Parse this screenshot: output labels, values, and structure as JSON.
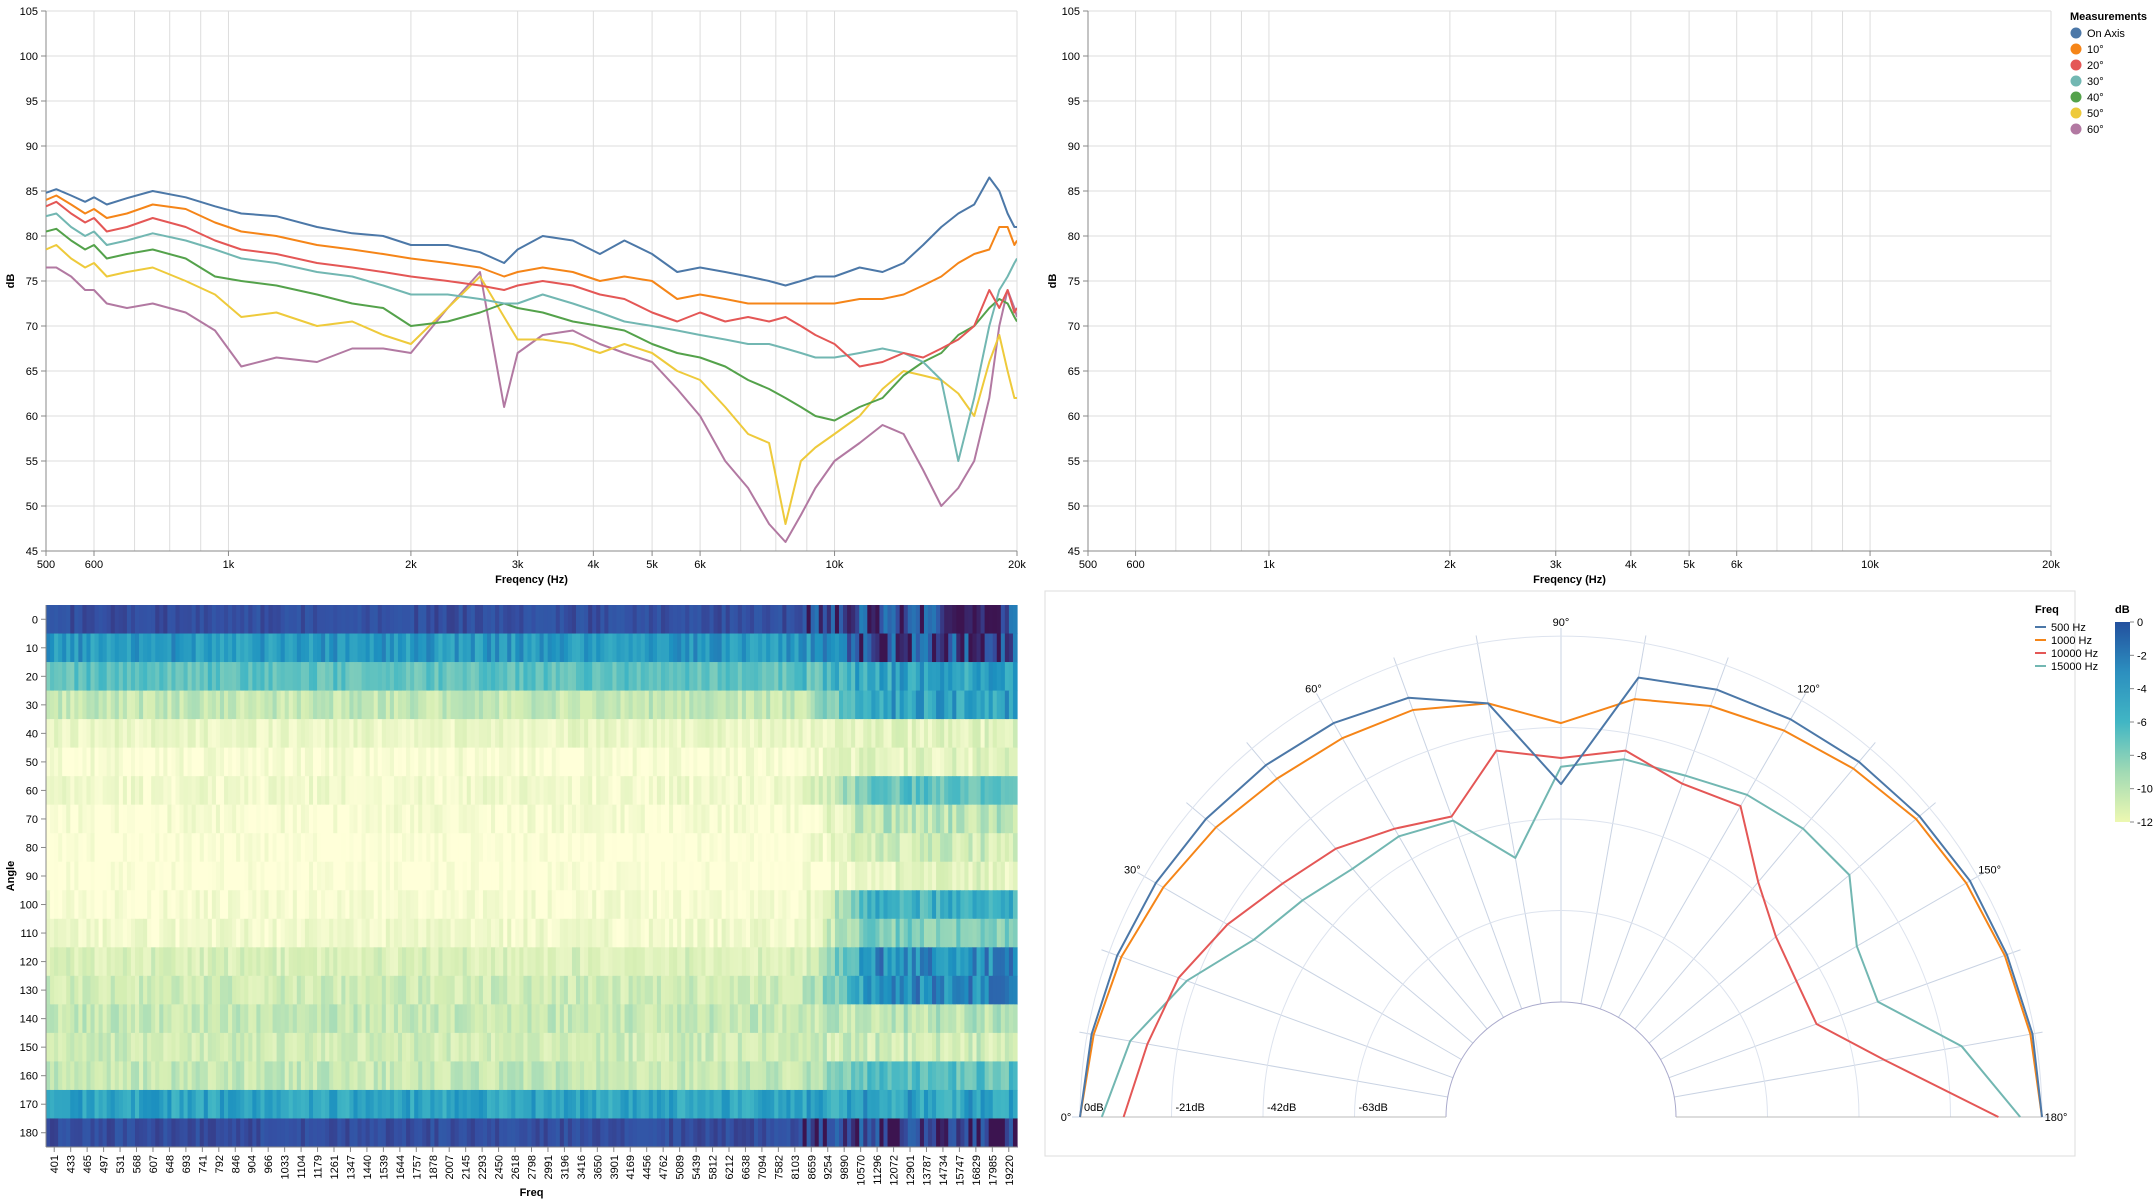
{
  "colors": {
    "On Axis": "#4c78a8",
    "10°": "#f58518",
    "20°": "#e45756",
    "30°": "#72b7b2",
    "40°": "#54a24b",
    "50°": "#eeca3b",
    "60°": "#b279a2"
  },
  "legend": {
    "title": "Measurements",
    "entries": [
      "On Axis",
      "10°",
      "20°",
      "30°",
      "40°",
      "50°",
      "60°"
    ]
  },
  "chart_data": [
    {
      "type": "line",
      "xlabel": "Freqency (Hz)",
      "ylabel": "dB",
      "xscale": "log",
      "xlim": [
        500,
        20000
      ],
      "ylim": [
        45,
        105
      ],
      "xticks": [
        500,
        600,
        1000,
        2000,
        3000,
        4000,
        5000,
        6000,
        10000,
        20000
      ],
      "xticklabels": [
        "500",
        "600",
        "1k",
        "2k",
        "3k",
        "4k",
        "5k",
        "6k",
        "10k",
        "20k"
      ],
      "yticks": [
        45,
        50,
        55,
        60,
        65,
        70,
        75,
        80,
        85,
        90,
        95,
        100,
        105
      ],
      "grid": true,
      "x": [
        500,
        520,
        550,
        580,
        600,
        630,
        680,
        750,
        850,
        950,
        1050,
        1200,
        1400,
        1600,
        1800,
        2000,
        2300,
        2600,
        2850,
        3000,
        3300,
        3700,
        4100,
        4500,
        5000,
        5500,
        6000,
        6600,
        7200,
        7800,
        8300,
        8800,
        9300,
        10000,
        11000,
        12000,
        13000,
        14000,
        15000,
        16000,
        17000,
        18000,
        18700,
        19300,
        19800,
        20000
      ],
      "series": [
        {
          "name": "On Axis",
          "values": [
            84.8,
            85.2,
            84.5,
            83.8,
            84.3,
            83.5,
            84.2,
            85.0,
            84.3,
            83.3,
            82.5,
            82.2,
            81.0,
            80.3,
            80.0,
            79.0,
            79.0,
            78.2,
            77.0,
            78.5,
            80.0,
            79.5,
            78.0,
            79.5,
            78.0,
            76.0,
            76.5,
            76.0,
            75.5,
            75.0,
            74.5,
            75.0,
            75.5,
            75.5,
            76.5,
            76.0,
            77.0,
            79.0,
            81.0,
            82.5,
            83.5,
            86.5,
            85.0,
            82.5,
            81.0,
            81.0
          ]
        },
        {
          "name": "10°",
          "values": [
            84.0,
            84.5,
            83.5,
            82.5,
            83.0,
            82.0,
            82.5,
            83.5,
            83.0,
            81.5,
            80.5,
            80.0,
            79.0,
            78.5,
            78.0,
            77.5,
            77.0,
            76.5,
            75.5,
            76.0,
            76.5,
            76.0,
            75.0,
            75.5,
            75.0,
            73.0,
            73.5,
            73.0,
            72.5,
            72.5,
            72.5,
            72.5,
            72.5,
            72.5,
            73.0,
            73.0,
            73.5,
            74.5,
            75.5,
            77.0,
            78.0,
            78.5,
            81.0,
            81.0,
            79.0,
            79.5
          ]
        },
        {
          "name": "20°",
          "values": [
            83.3,
            83.8,
            82.5,
            81.5,
            82.0,
            80.5,
            81.0,
            82.0,
            81.0,
            79.5,
            78.5,
            78.0,
            77.0,
            76.5,
            76.0,
            75.5,
            75.0,
            74.5,
            74.0,
            74.5,
            75.0,
            74.5,
            73.5,
            73.0,
            71.5,
            70.5,
            71.5,
            70.5,
            71.0,
            70.5,
            71.0,
            70.0,
            69.0,
            68.0,
            65.5,
            66.0,
            67.0,
            66.5,
            67.5,
            68.5,
            70.0,
            74.0,
            72.0,
            74.0,
            71.5,
            72.0
          ]
        },
        {
          "name": "30°",
          "values": [
            82.2,
            82.5,
            81.0,
            80.0,
            80.5,
            79.0,
            79.5,
            80.3,
            79.5,
            78.5,
            77.5,
            77.0,
            76.0,
            75.5,
            74.5,
            73.5,
            73.5,
            73.0,
            72.5,
            72.5,
            73.5,
            72.5,
            71.5,
            70.5,
            70.0,
            69.5,
            69.0,
            68.5,
            68.0,
            68.0,
            67.5,
            67.0,
            66.5,
            66.5,
            67.0,
            67.5,
            67.0,
            66.0,
            64.0,
            55.0,
            62.0,
            70.0,
            74.0,
            75.5,
            77.0,
            77.5
          ]
        },
        {
          "name": "40°",
          "values": [
            80.5,
            80.8,
            79.5,
            78.5,
            79.0,
            77.5,
            78.0,
            78.5,
            77.5,
            75.5,
            75.0,
            74.5,
            73.5,
            72.5,
            72.0,
            70.0,
            70.5,
            71.5,
            72.5,
            72.0,
            71.5,
            70.5,
            70.0,
            69.5,
            68.0,
            67.0,
            66.5,
            65.5,
            64.0,
            63.0,
            62.0,
            61.0,
            60.0,
            59.5,
            61.0,
            62.0,
            64.5,
            66.0,
            67.0,
            69.0,
            70.0,
            72.0,
            73.0,
            72.5,
            71.0,
            70.5
          ]
        },
        {
          "name": "50°",
          "values": [
            78.5,
            79.0,
            77.5,
            76.5,
            77.0,
            75.5,
            76.0,
            76.5,
            75.0,
            73.5,
            71.0,
            71.5,
            70.0,
            70.5,
            69.0,
            68.0,
            72.0,
            75.5,
            71.0,
            68.5,
            68.5,
            68.0,
            67.0,
            68.0,
            67.0,
            65.0,
            64.0,
            61.0,
            58.0,
            57.0,
            48.0,
            55.0,
            56.5,
            58.0,
            60.0,
            63.0,
            65.0,
            64.5,
            64.0,
            62.5,
            60.0,
            66.0,
            69.0,
            65.0,
            62.0,
            62.0
          ]
        },
        {
          "name": "60°",
          "values": [
            76.5,
            76.5,
            75.5,
            74.0,
            74.0,
            72.5,
            72.0,
            72.5,
            71.5,
            69.5,
            65.5,
            66.5,
            66.0,
            67.5,
            67.5,
            67.0,
            72.0,
            76.0,
            61.0,
            67.0,
            69.0,
            69.5,
            68.0,
            67.0,
            66.0,
            63.0,
            60.0,
            55.0,
            52.0,
            48.0,
            46.0,
            49.0,
            52.0,
            55.0,
            57.0,
            59.0,
            58.0,
            54.0,
            50.0,
            52.0,
            55.0,
            62.0,
            70.0,
            74.0,
            72.0,
            71.0
          ]
        }
      ]
    },
    {
      "type": "line",
      "xlabel": "Freqency (Hz)",
      "ylabel": "dB",
      "xscale": "log",
      "xlim": [
        500,
        20000
      ],
      "ylim": [
        45,
        105
      ],
      "xticks": [
        500,
        600,
        1000,
        2000,
        3000,
        4000,
        5000,
        6000,
        10000,
        20000
      ],
      "xticklabels": [
        "500",
        "600",
        "1k",
        "2k",
        "3k",
        "4k",
        "5k",
        "6k",
        "10k",
        "20k"
      ],
      "yticks": [
        45,
        50,
        55,
        60,
        65,
        70,
        75,
        80,
        85,
        90,
        95,
        100,
        105
      ],
      "grid": true,
      "series": []
    },
    {
      "type": "heatmap",
      "xlabel": "Freq",
      "ylabel": "Angle",
      "y": [
        0,
        10,
        20,
        30,
        40,
        50,
        60,
        70,
        80,
        90,
        100,
        110,
        120,
        130,
        140,
        150,
        160,
        170,
        180
      ],
      "xticklabels": [
        "401",
        "433",
        "465",
        "497",
        "531",
        "568",
        "607",
        "648",
        "693",
        "741",
        "792",
        "846",
        "904",
        "966",
        "1033",
        "1104",
        "1179",
        "1261",
        "1347",
        "1440",
        "1539",
        "1644",
        "1757",
        "1878",
        "2007",
        "2145",
        "2293",
        "2450",
        "2618",
        "2798",
        "2991",
        "3196",
        "3416",
        "3650",
        "3901",
        "4169",
        "4456",
        "4762",
        "5089",
        "5439",
        "5812",
        "6212",
        "6638",
        "7094",
        "7582",
        "8103",
        "8659",
        "9254",
        "9890",
        "10570",
        "11296",
        "12072",
        "12901",
        "13787",
        "14734",
        "15747",
        "16829",
        "17985",
        "19220"
      ],
      "legend_title": "dB",
      "color_domain": [
        -12,
        0
      ],
      "color_ticks": [
        0,
        -2,
        -4,
        -6,
        -8,
        -10,
        -12
      ],
      "row_base_db": [
        0,
        -2.5,
        -5,
        -8.5,
        -10.5,
        -11.5,
        -11,
        -11.5,
        -12,
        -12,
        -11.5,
        -11,
        -9.5,
        -9,
        -8.5,
        -9,
        -8.5,
        -3,
        0
      ],
      "row_hf_db": [
        0,
        0,
        -3,
        -3,
        -10,
        -10,
        -5,
        -8,
        -9,
        -10,
        -4,
        -6,
        -2,
        -2,
        -8,
        -9,
        -5,
        -3,
        0.5
      ]
    },
    {
      "type": "polar",
      "legend_title": "Freq",
      "angle_ticks": [
        "0°",
        "30°",
        "60°",
        "90°",
        "120°",
        "150°",
        "180°"
      ],
      "radial_ticks": [
        "0dB",
        "-21dB",
        "-42dB",
        "-63dB"
      ],
      "rlim": [
        -84,
        0
      ],
      "angles": [
        0,
        10,
        20,
        30,
        40,
        50,
        60,
        70,
        80,
        90,
        100,
        110,
        120,
        130,
        140,
        150,
        160,
        170,
        180
      ],
      "series": [
        {
          "name": "500 Hz",
          "color": "#4c78a8",
          "values": [
            0,
            -1,
            -2,
            -3,
            -4,
            -5,
            -6,
            -8,
            -14,
            -34,
            -8,
            -6,
            -5,
            -4,
            -3,
            -2,
            -1.5,
            -0.5,
            0
          ]
        },
        {
          "name": "1000 Hz",
          "color": "#f58518",
          "values": [
            0,
            -1.5,
            -3,
            -5,
            -7,
            -9,
            -10,
            -11,
            -14,
            -20,
            -13,
            -10,
            -8,
            -6,
            -4,
            -3,
            -2,
            -1,
            0
          ]
        },
        {
          "name": "10000 Hz",
          "color": "#e45756",
          "values": [
            -10,
            -14,
            -17,
            -22,
            -27,
            -30,
            -34,
            -37,
            -25,
            -28,
            -25,
            -29,
            -28,
            -40,
            -46,
            -48,
            -48,
            -35,
            -10
          ]
        },
        {
          "name": "15000 Hz",
          "color": "#72b7b2",
          "values": [
            -5,
            -10,
            -19,
            -29,
            -33,
            -36,
            -36,
            -38,
            -50,
            -30,
            -27,
            -27,
            -25,
            -24,
            -24,
            -32,
            -33,
            -17,
            -5
          ]
        }
      ]
    }
  ]
}
